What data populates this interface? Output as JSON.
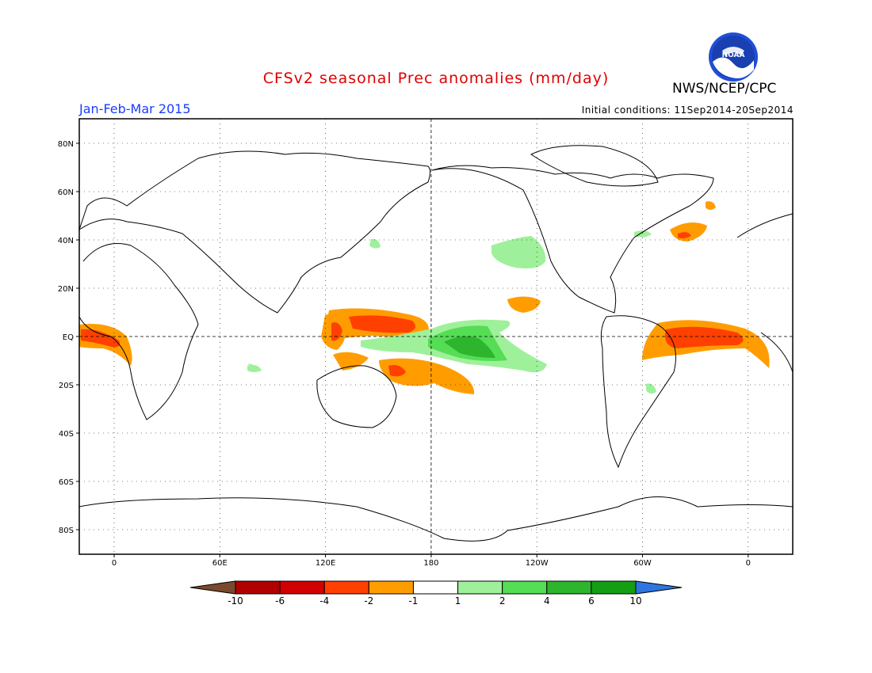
{
  "header": {
    "title": "CFSv2 seasonal Prec anomalies (mm/day)",
    "season": "Jan-Feb-Mar 2015",
    "initial_conditions": "Initial conditions: 11Sep2014-20Sep2014",
    "agency": "NWS/NCEP/CPC",
    "logo_text": "NOAA"
  },
  "map": {
    "lat_labels": [
      "80N",
      "60N",
      "40N",
      "20N",
      "EQ",
      "20S",
      "40S",
      "60S",
      "80S"
    ],
    "lon_labels": [
      "0",
      "60E",
      "120E",
      "180",
      "120W",
      "60W",
      "0"
    ]
  },
  "colorbar": {
    "labels": [
      "-10",
      "-6",
      "-4",
      "-2",
      "-1",
      "1",
      "2",
      "4",
      "6",
      "10"
    ],
    "colors": [
      "#7a4a2e",
      "#b00000",
      "#d20000",
      "#ff4000",
      "#ff9d00",
      "#ffffff",
      "#9ff09a",
      "#55dd55",
      "#2db52d",
      "#149e14",
      "#2f75e0"
    ]
  },
  "colors": {
    "title": "#e00000",
    "season": "#1a3cff"
  }
}
